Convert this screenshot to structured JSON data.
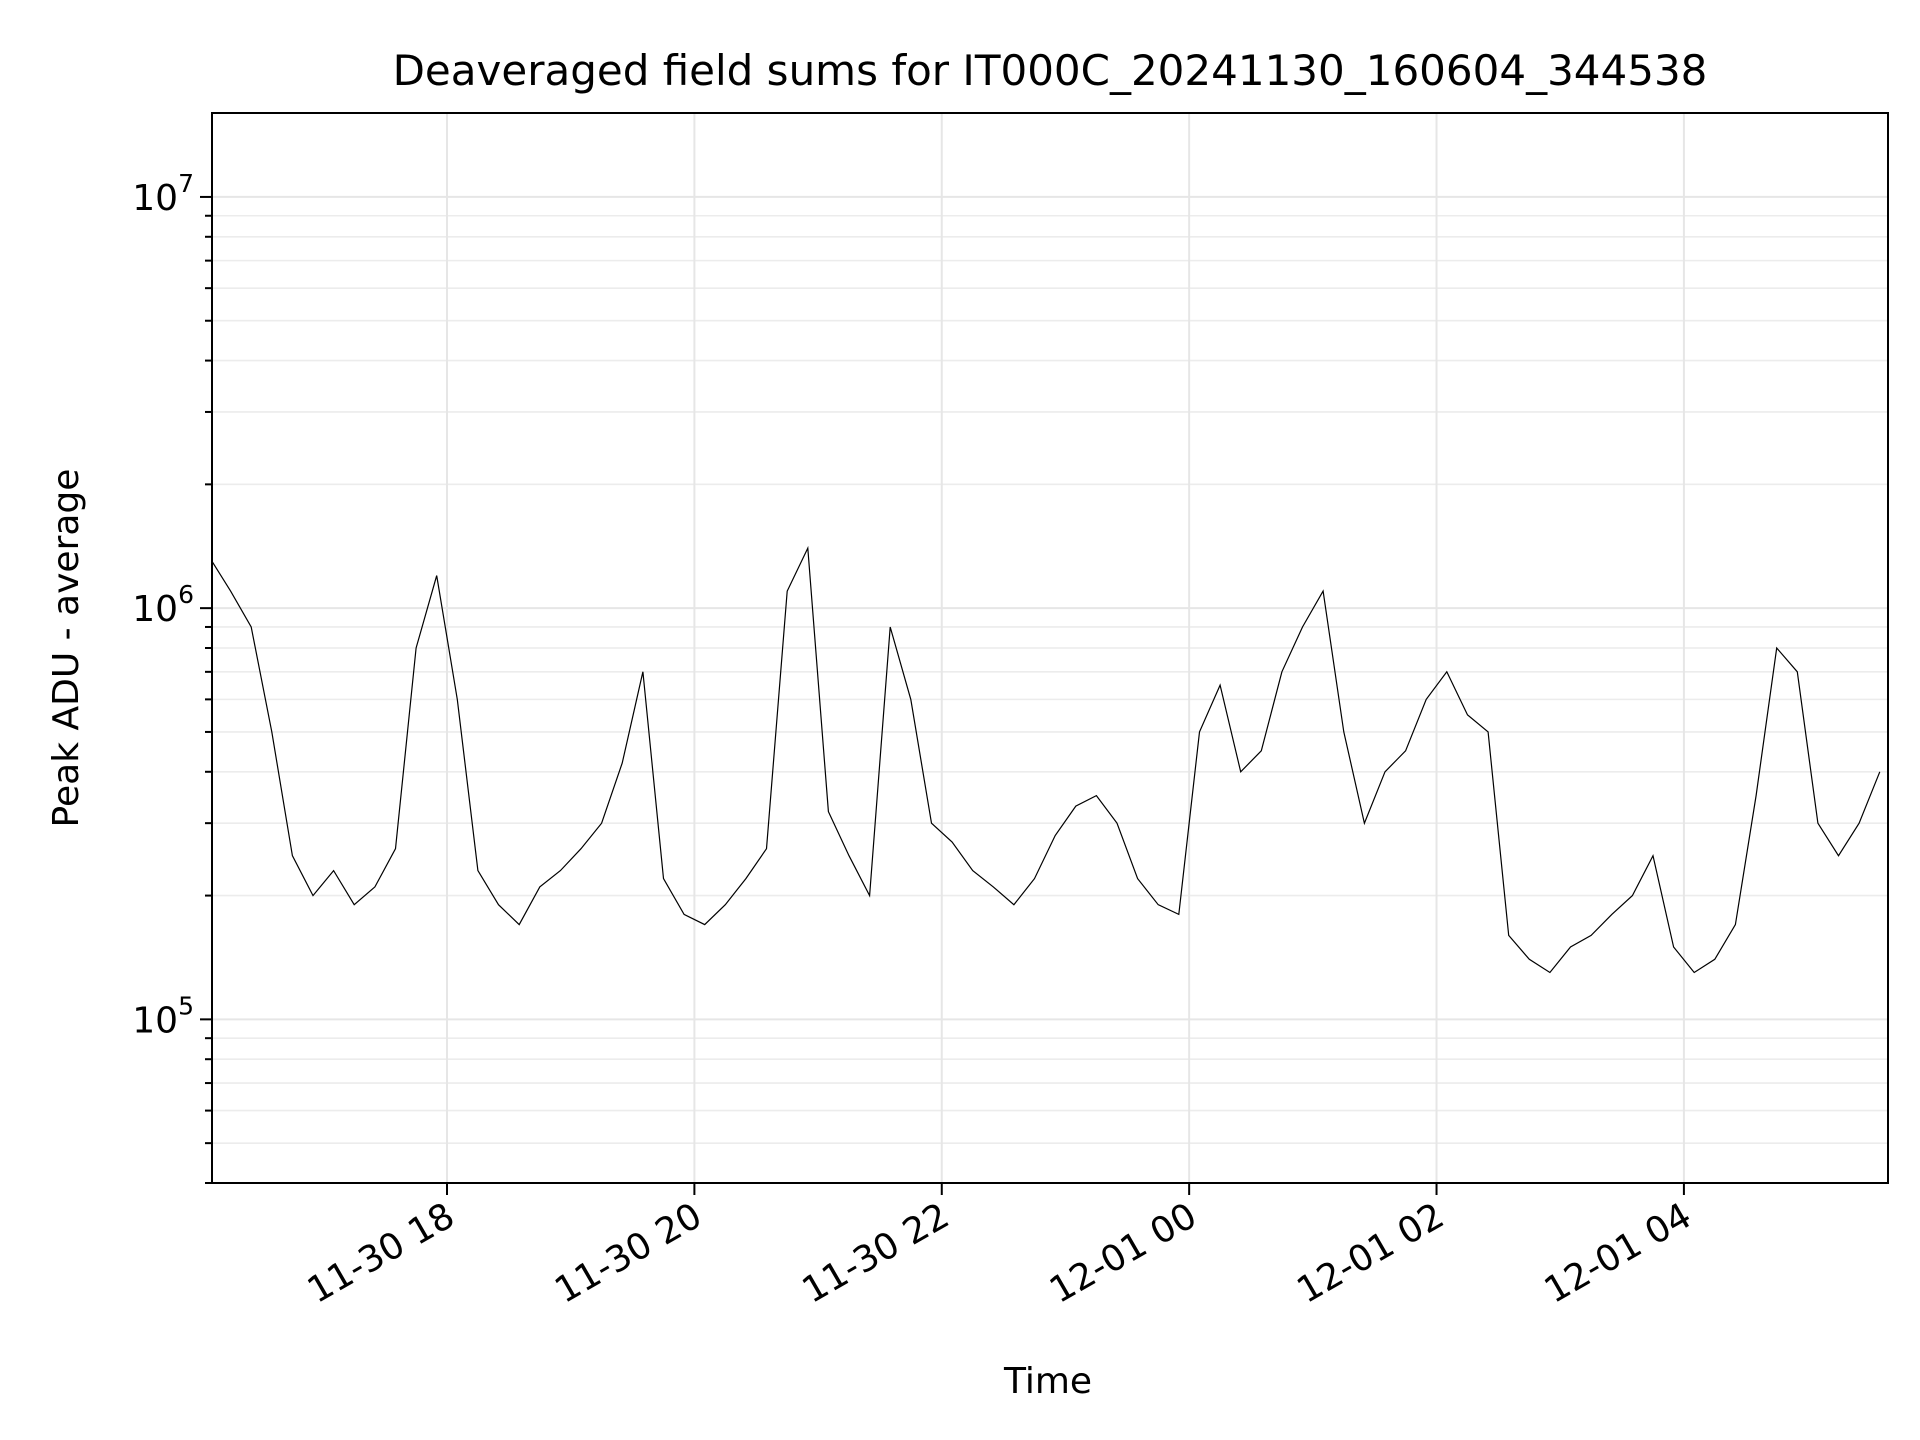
{
  "chart_data": {
    "type": "line",
    "title": "Deaveraged field sums for IT000C_20241130_160604_344538",
    "xlabel": "Time",
    "ylabel": "Peak ADU - average",
    "yscale": "log",
    "grid": true,
    "xlim": [
      "2024-11-30 16:06",
      "2024-12-01 05:39"
    ],
    "ylim": [
      40000,
      16000000
    ],
    "x_ticks": [
      {
        "value": "2024-11-30 18:00",
        "label": "11-30 18"
      },
      {
        "value": "2024-11-30 20:00",
        "label": "11-30 20"
      },
      {
        "value": "2024-11-30 22:00",
        "label": "11-30 22"
      },
      {
        "value": "2024-12-01 00:00",
        "label": "12-01 00"
      },
      {
        "value": "2024-12-01 02:00",
        "label": "12-01 02"
      },
      {
        "value": "2024-12-01 04:00",
        "label": "12-01 04"
      }
    ],
    "y_ticks": [
      {
        "value": 100000,
        "base": "10",
        "exp": "5"
      },
      {
        "value": 1000000,
        "base": "10",
        "exp": "6"
      },
      {
        "value": 10000000,
        "base": "10",
        "exp": "7"
      }
    ],
    "series": [
      {
        "color": "#000000",
        "x": [
          "2024-11-30 16:06",
          "2024-11-30 16:15",
          "2024-11-30 16:25",
          "2024-11-30 16:35",
          "2024-11-30 16:45",
          "2024-11-30 16:55",
          "2024-11-30 17:05",
          "2024-11-30 17:15",
          "2024-11-30 17:25",
          "2024-11-30 17:35",
          "2024-11-30 17:45",
          "2024-11-30 17:55",
          "2024-11-30 18:05",
          "2024-11-30 18:15",
          "2024-11-30 18:25",
          "2024-11-30 18:35",
          "2024-11-30 18:45",
          "2024-11-30 18:55",
          "2024-11-30 19:05",
          "2024-11-30 19:15",
          "2024-11-30 19:25",
          "2024-11-30 19:35",
          "2024-11-30 19:45",
          "2024-11-30 19:55",
          "2024-11-30 20:05",
          "2024-11-30 20:15",
          "2024-11-30 20:25",
          "2024-11-30 20:35",
          "2024-11-30 20:45",
          "2024-11-30 20:55",
          "2024-11-30 21:05",
          "2024-11-30 21:15",
          "2024-11-30 21:25",
          "2024-11-30 21:35",
          "2024-11-30 21:45",
          "2024-11-30 21:55",
          "2024-11-30 22:05",
          "2024-11-30 22:15",
          "2024-11-30 22:25",
          "2024-11-30 22:35",
          "2024-11-30 22:45",
          "2024-11-30 22:55",
          "2024-11-30 23:05",
          "2024-11-30 23:15",
          "2024-11-30 23:25",
          "2024-11-30 23:35",
          "2024-11-30 23:45",
          "2024-11-30 23:55",
          "2024-12-01 00:05",
          "2024-12-01 00:15",
          "2024-12-01 00:25",
          "2024-12-01 00:35",
          "2024-12-01 00:45",
          "2024-12-01 00:55",
          "2024-12-01 01:05",
          "2024-12-01 01:15",
          "2024-12-01 01:25",
          "2024-12-01 01:35",
          "2024-12-01 01:45",
          "2024-12-01 01:55",
          "2024-12-01 02:05",
          "2024-12-01 02:15",
          "2024-12-01 02:25",
          "2024-12-01 02:35",
          "2024-12-01 02:45",
          "2024-12-01 02:55",
          "2024-12-01 03:05",
          "2024-12-01 03:15",
          "2024-12-01 03:25",
          "2024-12-01 03:35",
          "2024-12-01 03:45",
          "2024-12-01 03:55",
          "2024-12-01 04:05",
          "2024-12-01 04:15",
          "2024-12-01 04:25",
          "2024-12-01 04:35",
          "2024-12-01 04:45",
          "2024-12-01 04:55",
          "2024-12-01 05:05",
          "2024-12-01 05:15",
          "2024-12-01 05:25",
          "2024-12-01 05:35"
        ],
        "y": [
          1300000,
          1100000,
          900000,
          500000,
          250000,
          200000,
          230000,
          190000,
          210000,
          260000,
          800000,
          1200000,
          600000,
          230000,
          190000,
          170000,
          210000,
          230000,
          260000,
          300000,
          420000,
          700000,
          220000,
          180000,
          170000,
          190000,
          220000,
          260000,
          1100000,
          1400000,
          320000,
          250000,
          200000,
          900000,
          600000,
          300000,
          270000,
          230000,
          210000,
          190000,
          220000,
          280000,
          330000,
          350000,
          300000,
          220000,
          190000,
          180000,
          500000,
          650000,
          400000,
          450000,
          700000,
          900000,
          1100000,
          500000,
          300000,
          400000,
          450000,
          600000,
          700000,
          550000,
          500000,
          160000,
          140000,
          130000,
          150000,
          160000,
          180000,
          200000,
          250000,
          150000,
          130000,
          140000,
          170000,
          350000,
          800000,
          700000,
          300000,
          250000,
          300000,
          400000
        ]
      }
    ]
  }
}
